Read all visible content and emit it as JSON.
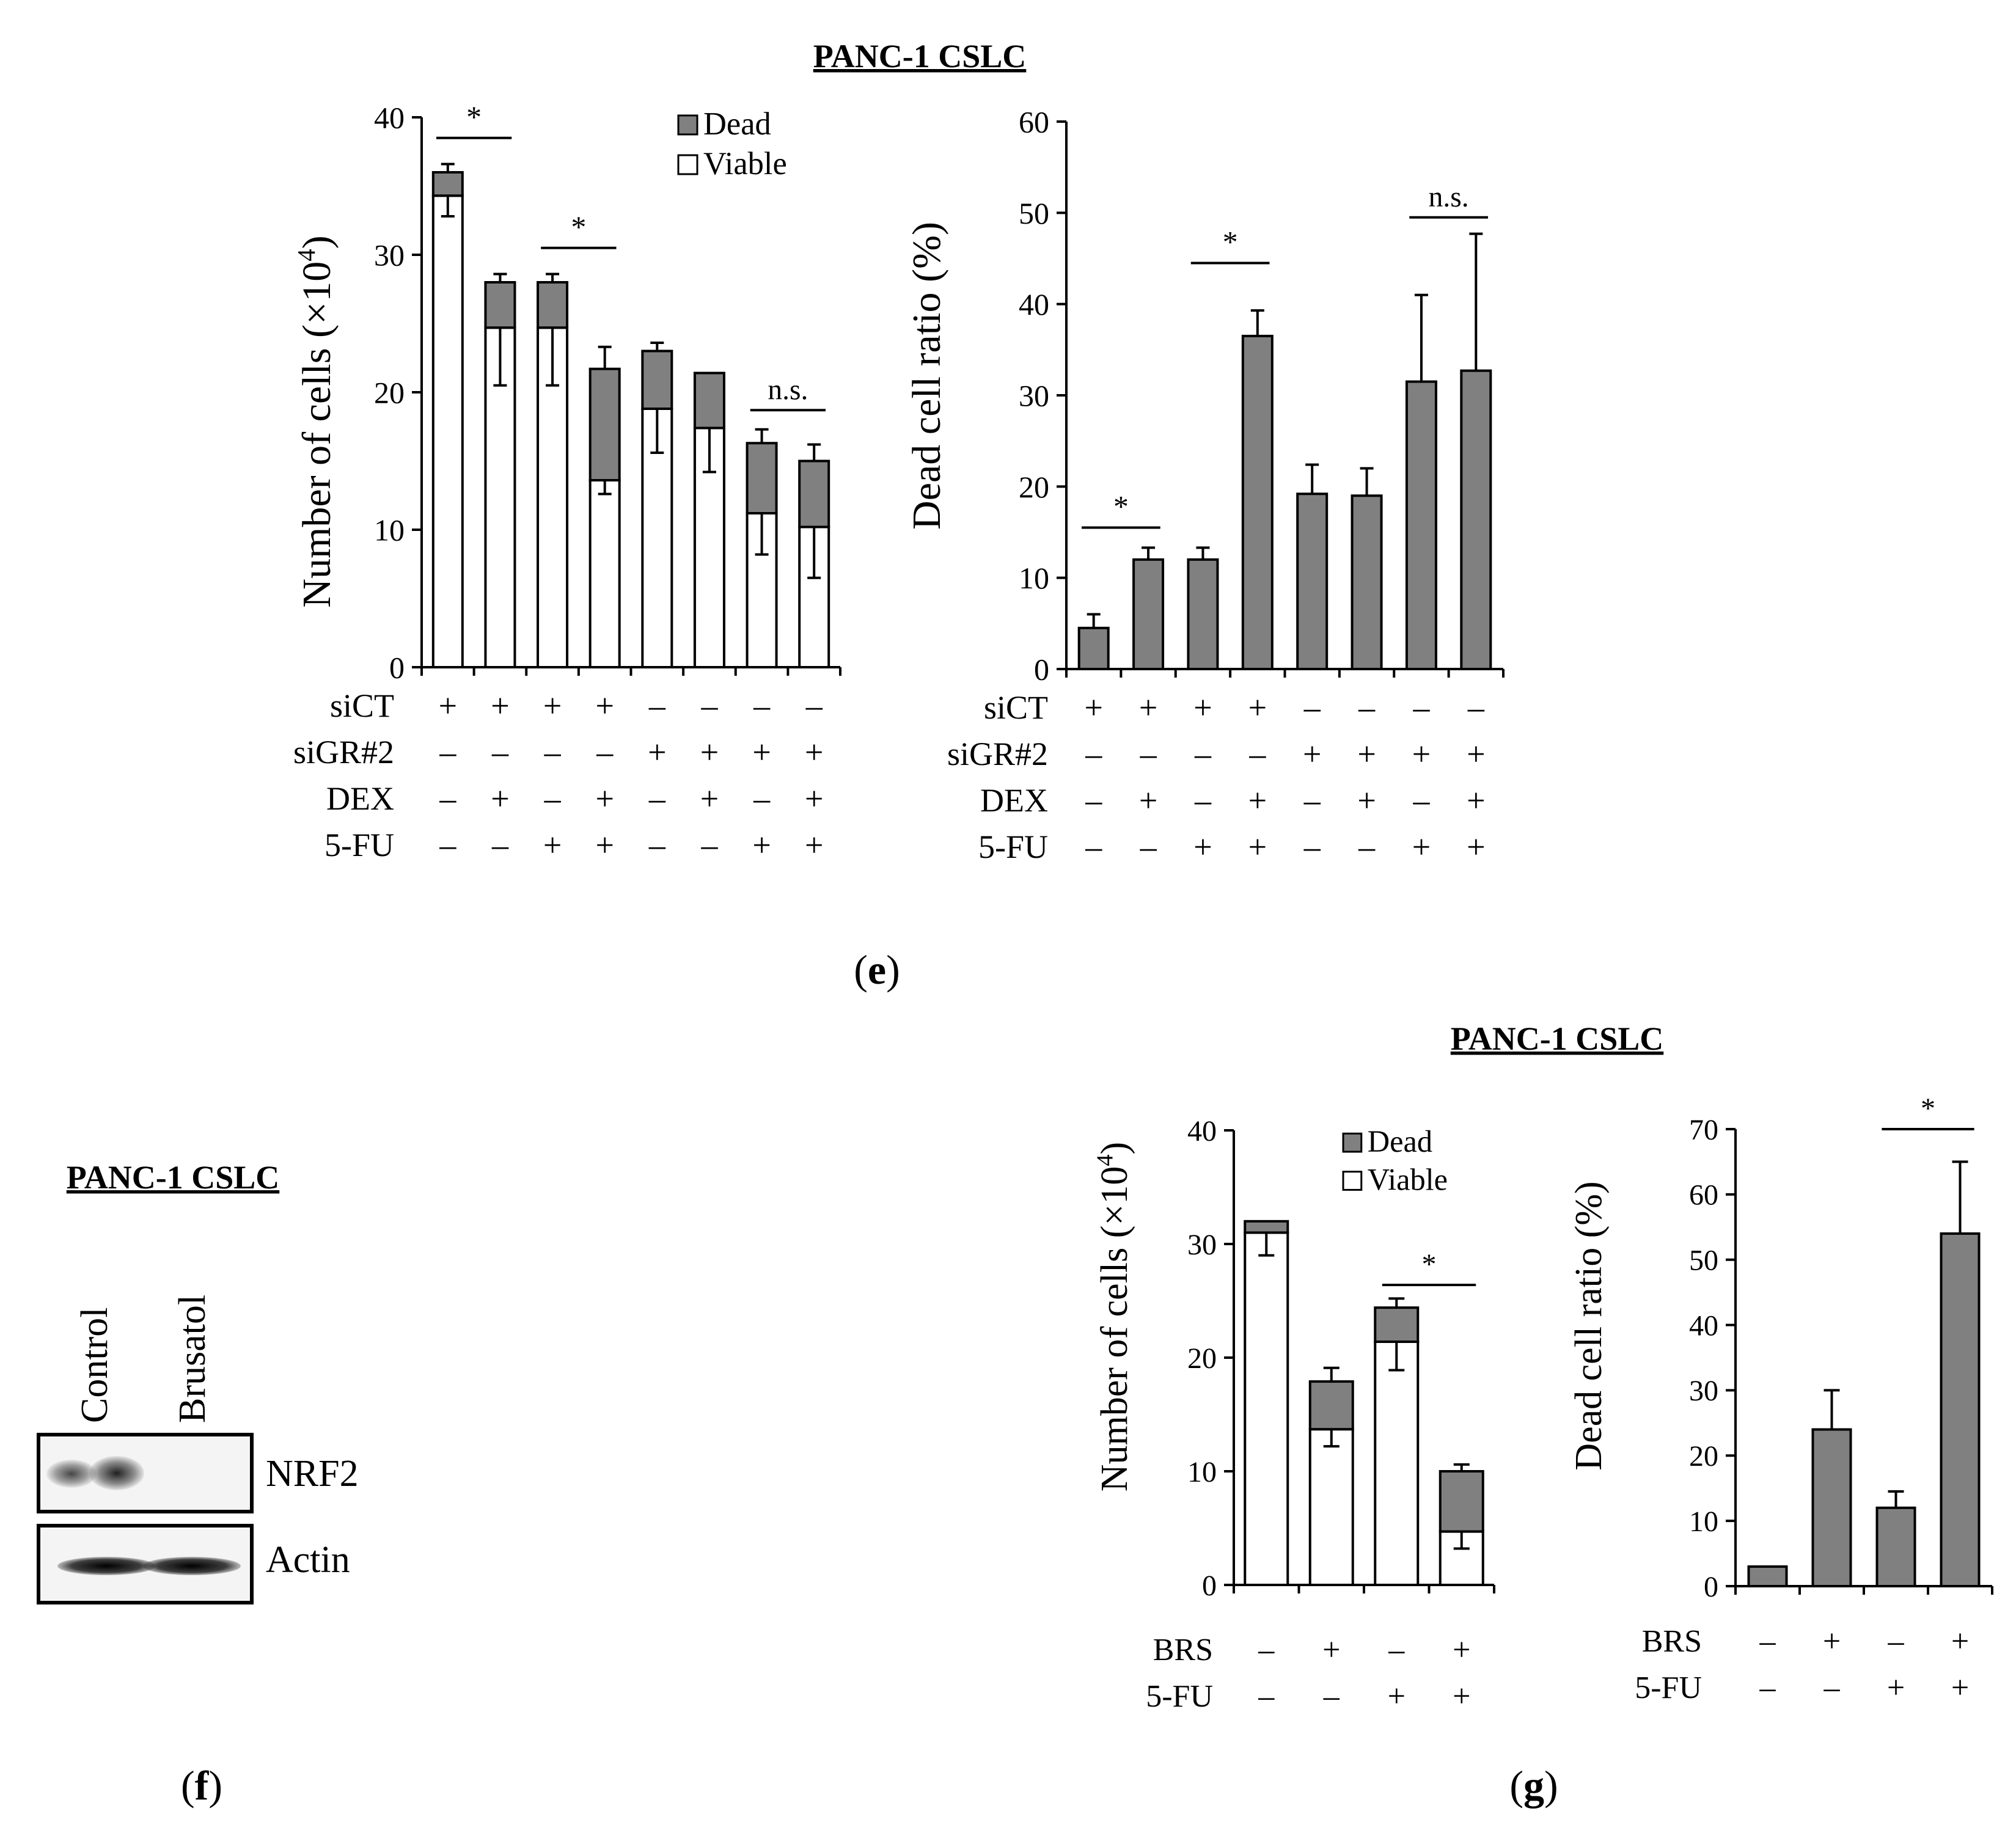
{
  "panels": {
    "e": {
      "title": "PANC-1 CSLC",
      "label_letter": "e",
      "row_labels": [
        "siCT",
        "siGR#2",
        "DEX",
        "5-FU"
      ],
      "conditions": {
        "siCT": [
          "+",
          "+",
          "+",
          "+",
          "–",
          "–",
          "–",
          "–"
        ],
        "siGR#2": [
          "–",
          "–",
          "–",
          "–",
          "+",
          "+",
          "+",
          "+"
        ],
        "DEX": [
          "–",
          "+",
          "–",
          "+",
          "–",
          "+",
          "–",
          "+"
        ],
        "5-FU": [
          "–",
          "–",
          "+",
          "+",
          "–",
          "–",
          "+",
          "+"
        ]
      }
    },
    "f": {
      "title": "PANC-1 CSLC",
      "label_letter": "f",
      "lanes": [
        "Control",
        "Brusatol"
      ],
      "proteins": [
        "NRF2",
        "Actin"
      ]
    },
    "g": {
      "title": "PANC-1 CSLC",
      "label_letter": "g",
      "row_labels": [
        "BRS",
        "5-FU"
      ],
      "conditions": {
        "BRS": [
          "–",
          "+",
          "–",
          "+"
        ],
        "5-FU": [
          "–",
          "–",
          "+",
          "+"
        ]
      }
    }
  },
  "colors": {
    "dead": "#808080",
    "viable": "#ffffff",
    "axis": "#000000"
  },
  "chart_data": [
    {
      "id": "e-count",
      "type": "bar",
      "stacked": true,
      "ylabel_main": "Number of cells (×10",
      "ylabel_sup": "4",
      "ylabel_end": ")",
      "ylim": [
        0,
        40
      ],
      "yticks": [
        0,
        10,
        20,
        30,
        40
      ],
      "legend": [
        "Dead",
        "Viable"
      ],
      "legend_position": "top-right",
      "series": [
        {
          "name": "Viable",
          "values": [
            34.3,
            24.7,
            24.7,
            13.6,
            18.8,
            17.4,
            11.2,
            10.2
          ],
          "err": [
            1.5,
            4.2,
            4.2,
            1.0,
            3.2,
            3.2,
            3.0,
            3.7
          ]
        },
        {
          "name": "Dead",
          "values": [
            1.7,
            3.3,
            3.3,
            8.1,
            4.2,
            4.0,
            5.1,
            4.8
          ],
          "err": [
            0.6,
            0.6,
            0.6,
            1.6,
            0.6,
            0.0,
            1.0,
            1.2
          ]
        }
      ],
      "annotations": [
        {
          "text": "*",
          "from": 0,
          "to": 1,
          "y": 38.5
        },
        {
          "text": "*",
          "from": 2,
          "to": 3,
          "y": 30.5
        },
        {
          "text": "n.s.",
          "from": 6,
          "to": 7,
          "y": 18.7
        }
      ]
    },
    {
      "id": "e-ratio",
      "type": "bar",
      "ylabel": "Dead cell ratio (%)",
      "ylim": [
        0,
        60
      ],
      "yticks": [
        0,
        10,
        20,
        30,
        40,
        50,
        60
      ],
      "values": [
        4.5,
        12.0,
        12.0,
        36.5,
        19.2,
        19.0,
        31.5,
        32.7
      ],
      "err": [
        1.5,
        1.3,
        1.3,
        2.8,
        3.2,
        3.0,
        9.5,
        15.0
      ],
      "annotations": [
        {
          "text": "*",
          "from": 0,
          "to": 1,
          "y": 15.5
        },
        {
          "text": "*",
          "from": 2,
          "to": 3,
          "y": 44.5
        },
        {
          "text": "n.s.",
          "from": 6,
          "to": 7,
          "y": 49.5
        }
      ]
    },
    {
      "id": "g-count",
      "type": "bar",
      "stacked": true,
      "ylabel_main": "Number of cells (×10",
      "ylabel_sup": "4",
      "ylabel_end": ")",
      "ylim": [
        0,
        40
      ],
      "yticks": [
        0,
        10,
        20,
        30,
        40
      ],
      "legend": [
        "Dead",
        "Viable"
      ],
      "legend_position": "top-right",
      "series": [
        {
          "name": "Viable",
          "values": [
            31.0,
            13.7,
            21.4,
            4.7
          ],
          "err": [
            2.0,
            1.5,
            2.5,
            1.5
          ]
        },
        {
          "name": "Dead",
          "values": [
            1.0,
            4.2,
            3.0,
            5.3
          ],
          "err": [
            0.0,
            1.2,
            0.8,
            0.6
          ]
        }
      ],
      "annotations": [
        {
          "text": "*",
          "from": 2,
          "to": 3,
          "y": 26.4
        }
      ]
    },
    {
      "id": "g-ratio",
      "type": "bar",
      "ylabel": "Dead cell ratio (%)",
      "ylim": [
        0,
        70
      ],
      "yticks": [
        0,
        10,
        20,
        30,
        40,
        50,
        60,
        70
      ],
      "values": [
        3.0,
        24.0,
        12.0,
        54.0
      ],
      "err": [
        0.0,
        6.0,
        2.5,
        11.0
      ],
      "annotations": [
        {
          "text": "*",
          "from": 2,
          "to": 3,
          "y": 70.0
        }
      ]
    }
  ]
}
